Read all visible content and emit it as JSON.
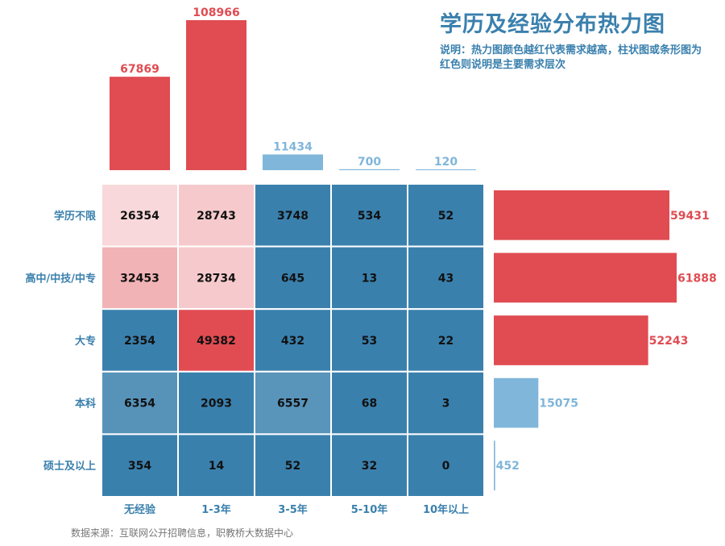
{
  "title": "学历及经验分布热力图",
  "subtitle": "说明：热力图颜色越红代表需求越高，柱状图或条形图为红色则说明是主要需求层次",
  "source": "数据来源：互联网公开招聘信息，职教桥大数据中心",
  "chart_data": [
    {
      "type": "heatmap",
      "x_categories": [
        "无经验",
        "1-3年",
        "3-5年",
        "5-10年",
        "10年以上"
      ],
      "y_categories": [
        "学历不限",
        "高中/中技/中专",
        "大专",
        "本科",
        "硕士及以上"
      ],
      "values": [
        [
          26354,
          28743,
          3748,
          534,
          52
        ],
        [
          32453,
          28734,
          645,
          13,
          43
        ],
        [
          2354,
          49382,
          432,
          53,
          22
        ],
        [
          6354,
          2093,
          6557,
          68,
          3
        ],
        [
          354,
          14,
          52,
          32,
          0
        ]
      ],
      "colorscale": [
        [
          0,
          "#3a80ad"
        ],
        [
          4000,
          "#3a80ad"
        ],
        [
          20000,
          "#ffffff"
        ],
        [
          49382,
          "#e04c52"
        ]
      ]
    },
    {
      "type": "bar",
      "orientation": "vertical",
      "categories": [
        "无经验",
        "1-3年",
        "3-5年",
        "5-10年",
        "10年以上"
      ],
      "values": [
        67869,
        108966,
        11434,
        700,
        120
      ],
      "colors": [
        "#e04c52",
        "#e04c52",
        "#80b6da",
        "#80b6da",
        "#80b6da"
      ]
    },
    {
      "type": "bar",
      "orientation": "horizontal",
      "categories": [
        "学历不限",
        "高中/中技/中专",
        "大专",
        "本科",
        "硕士及以上"
      ],
      "values": [
        59431,
        61888,
        52243,
        15075,
        452
      ],
      "colors": [
        "#e04c52",
        "#e04c52",
        "#e04c52",
        "#80b6da",
        "#80b6da"
      ]
    }
  ]
}
